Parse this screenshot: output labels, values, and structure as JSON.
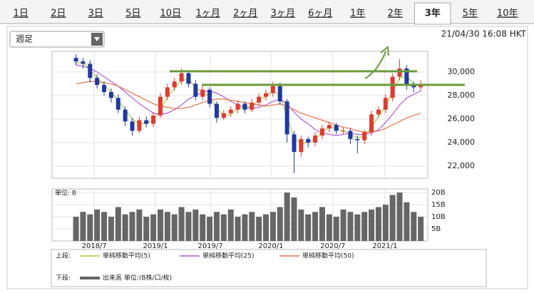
{
  "tabs": [
    "1日",
    "2日",
    "3日",
    "5日",
    "10日",
    "1ヶ月",
    "2ヶ月",
    "3ヶ月",
    "6ヶ月",
    "1年",
    "2年",
    "3年",
    "5年",
    "10年"
  ],
  "selected_tab": "3年",
  "selector": "週足",
  "timestamp": "21/04/30 16:08 HKT",
  "chart_data": {
    "type": "candlestick",
    "up_color": "#e03a2f",
    "down_color": "#1f3a9e",
    "xlim": [
      -3.4,
      50
    ],
    "xticks": [
      {
        "value": 2.6,
        "label": "2018/7"
      },
      {
        "value": 11.3,
        "label": "2019/1"
      },
      {
        "value": 19.1,
        "label": "2019/7"
      },
      {
        "value": 27.7,
        "label": "2020/1"
      },
      {
        "value": 36.5,
        "label": "2020/7"
      },
      {
        "value": 43.9,
        "label": "2021/1"
      }
    ],
    "ylim": [
      20970,
      31760
    ],
    "yticks": [
      {
        "value": 22000,
        "label": "22,000"
      },
      {
        "value": 24000,
        "label": "24,000"
      },
      {
        "value": 26000,
        "label": "26,000"
      },
      {
        "value": 28000,
        "label": "28,000"
      },
      {
        "value": 30000,
        "label": "30,000"
      }
    ],
    "grid": true,
    "open": [
      31200,
      30900,
      30700,
      29500,
      28900,
      28300,
      27800,
      26800,
      25800,
      25000,
      25900,
      25600,
      26300,
      27900,
      28700,
      29200,
      29900,
      29000,
      27900,
      28500,
      27300,
      26100,
      26500,
      26800,
      27300,
      26800,
      27400,
      27900,
      28200,
      28800,
      27500,
      24700,
      23200,
      24300,
      24000,
      24600,
      25200,
      25500,
      25000,
      25000,
      24300,
      24200,
      24900,
      26400,
      26800,
      27800,
      29600,
      30300,
      28900,
      28700
    ],
    "high": [
      31500,
      31200,
      31000,
      29800,
      29200,
      28600,
      28100,
      27100,
      26100,
      26200,
      26200,
      26600,
      28200,
      29000,
      29500,
      30300,
      30100,
      29300,
      28800,
      28700,
      27500,
      26800,
      27100,
      27600,
      27500,
      27700,
      28200,
      28500,
      29200,
      29100,
      27700,
      25000,
      24600,
      24500,
      24900,
      25500,
      25800,
      25700,
      25300,
      25200,
      24600,
      25100,
      26700,
      27100,
      28100,
      29900,
      31100,
      30600,
      29200,
      29300
    ],
    "low": [
      30600,
      30300,
      29100,
      28600,
      28000,
      27400,
      26500,
      25400,
      24600,
      24800,
      25300,
      25300,
      26100,
      27600,
      28400,
      28900,
      28700,
      27600,
      27600,
      27000,
      25700,
      25900,
      26200,
      26500,
      26500,
      26600,
      27100,
      27600,
      27900,
      27200,
      24000,
      21400,
      22800,
      23600,
      23700,
      24300,
      24900,
      24700,
      24700,
      23900,
      23100,
      23900,
      24600,
      26100,
      26500,
      27500,
      29300,
      28500,
      28300,
      28400
    ],
    "close": [
      30900,
      30700,
      29500,
      28900,
      28300,
      27800,
      26800,
      25800,
      25000,
      25900,
      25600,
      26300,
      27900,
      28700,
      29200,
      29900,
      29000,
      27900,
      28500,
      27300,
      26100,
      26500,
      26800,
      27300,
      26800,
      27400,
      27900,
      28200,
      28800,
      27500,
      24700,
      23200,
      24300,
      24000,
      24600,
      25200,
      25500,
      25000,
      25000,
      24300,
      24200,
      24900,
      26400,
      26800,
      27800,
      29600,
      30300,
      28900,
      28700,
      29000
    ],
    "upper_label": "上段:",
    "series": [
      {
        "name": "単純移動平均(5)",
        "color": "#a8cf3c",
        "values": [
          30800,
          30800,
          30200,
          29500,
          28900,
          28300,
          27600,
          26800,
          26000,
          25600,
          25600,
          25900,
          26800,
          27900,
          28600,
          29300,
          29400,
          28700,
          28300,
          27900,
          26900,
          26300,
          26400,
          26900,
          27000,
          27100,
          27600,
          27900,
          28400,
          28000,
          26200,
          24400,
          23900,
          24000,
          24300,
          24900,
          25300,
          25200,
          25000,
          24700,
          24400,
          24500,
          25300,
          26200,
          27100,
          28300,
          29500,
          29600,
          29000,
          28800
        ]
      },
      {
        "name": "単純移動平均(25)",
        "color": "#b05ad8",
        "values": [
          30600,
          30500,
          30300,
          30000,
          29600,
          29200,
          28800,
          28300,
          27800,
          27300,
          26900,
          26500,
          26400,
          26500,
          26800,
          27200,
          27700,
          28000,
          28300,
          28400,
          28200,
          27900,
          27500,
          27200,
          27000,
          26900,
          27000,
          27200,
          27500,
          27700,
          27300,
          26600,
          26000,
          25600,
          25100,
          24800,
          24700,
          24600,
          24700,
          24800,
          24700,
          24700,
          24800,
          25100,
          25700,
          26400,
          27200,
          27800,
          28100,
          28400
        ]
      },
      {
        "name": "単純移動平均(50)",
        "color": "#e8704a",
        "values": [
          29000,
          29100,
          29200,
          29200,
          29100,
          29000,
          28800,
          28500,
          28200,
          27900,
          27600,
          27300,
          27100,
          27000,
          26900,
          26900,
          27000,
          27200,
          27400,
          27600,
          27700,
          27700,
          27600,
          27500,
          27400,
          27300,
          27200,
          27100,
          27200,
          27300,
          27100,
          26800,
          26500,
          26300,
          26100,
          25900,
          25700,
          25500,
          25300,
          25200,
          25000,
          24900,
          24900,
          25000,
          25200,
          25500,
          25800,
          26100,
          26300,
          26500
        ]
      }
    ],
    "volume": {
      "unit_label": "単位: B",
      "lower_label": "下段:",
      "name": "出来高 単位:(B株/口/枚)",
      "color": "#666666",
      "ylim": [
        0,
        21.5
      ],
      "yticks": [
        {
          "value": 5,
          "label": "5B"
        },
        {
          "value": 10,
          "label": "10B"
        },
        {
          "value": 15,
          "label": "15B"
        },
        {
          "value": 20,
          "label": "20B"
        }
      ],
      "values": [
        10,
        12,
        11,
        13,
        12,
        10,
        14,
        11,
        12,
        13,
        10,
        11,
        13,
        12,
        11,
        14,
        12,
        13,
        11,
        10,
        12,
        11,
        13,
        10,
        11,
        12,
        10,
        11,
        12,
        14,
        20,
        18,
        13,
        11,
        12,
        14,
        11,
        10,
        13,
        12,
        11,
        12,
        13,
        14,
        15,
        19,
        20,
        16,
        12,
        10
      ]
    }
  }
}
